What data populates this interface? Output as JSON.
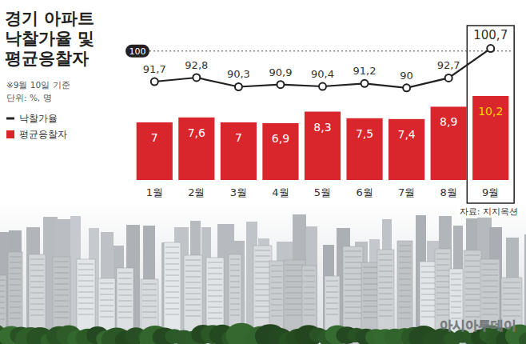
{
  "chart_data": {
    "type": "bar",
    "title": [
      "경기 아파트",
      "낙찰가율 및",
      "평균응찰자"
    ],
    "notes": [
      "※9월 10일 기준",
      "단위: %, 명"
    ],
    "source": "자료: 지지옥션",
    "watermark": "아시아투데이",
    "categories": [
      "1월",
      "2월",
      "3월",
      "4월",
      "5월",
      "6월",
      "7월",
      "8월",
      "9월"
    ],
    "series": [
      {
        "name": "낙찰가율",
        "type": "line",
        "axis": "y2",
        "color": "#222222",
        "marker": "circle",
        "values": [
          91.7,
          92.8,
          90.3,
          90.9,
          90.4,
          91.2,
          90,
          92.7,
          100.7
        ],
        "value_labels": [
          "91,7",
          "92,8",
          "90,3",
          "90,9",
          "90,4",
          "91,2",
          "90",
          "92,7",
          "100,7"
        ]
      },
      {
        "name": "평균응찰자",
        "type": "bar",
        "color": "#d9262c",
        "values": [
          7,
          7.6,
          7,
          6.9,
          8.3,
          7.5,
          7.4,
          8.9,
          10.2
        ],
        "value_labels": [
          "7",
          "7,6",
          "7",
          "6,9",
          "8,3",
          "7,5",
          "7,4",
          "8,9",
          "10,2"
        ]
      }
    ],
    "ylim": [
      0,
      17
    ],
    "yticks": [],
    "y2lim": [
      65,
      103
    ],
    "y2ticks": [
      100
    ],
    "data_labels": true,
    "legend": "left",
    "highlight": "9월"
  }
}
